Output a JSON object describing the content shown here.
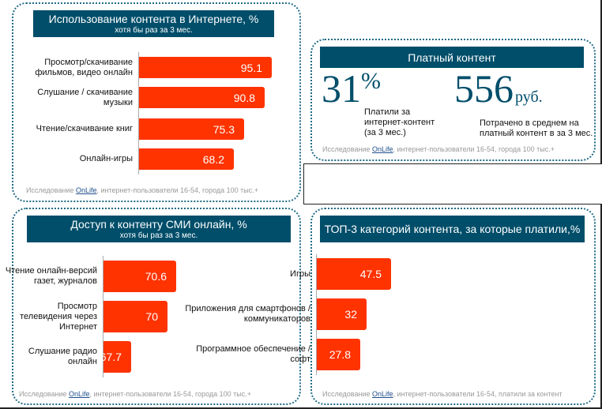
{
  "colors": {
    "header": "#004e6a",
    "bar": "#ff3300",
    "link": "#1f4e8a"
  },
  "panel1": {
    "title": "Использование контента в Интернете, %",
    "subtitle": "хотя бы раз за 3 мес.",
    "bars": [
      {
        "label": "Просмотр/скачивание фильмов, видео онлайн",
        "value": "95.1"
      },
      {
        "label": "Слушание / скачивание музыки",
        "value": "90.8"
      },
      {
        "label": "Чтение/скачивание книг",
        "value": "75.3"
      },
      {
        "label": "Онлайн-игры",
        "value": "68.2"
      }
    ],
    "footer_pre": "Исследование ",
    "footer_link": "OnLife",
    "footer_post": ", интернет-пользователи 16-54, города 100 тыс.+"
  },
  "panel2": {
    "title": "Платный контент",
    "stat1_value": "31",
    "stat1_unit": "%",
    "stat1_text": "Платили за интернет-контент (за 3 мес.)",
    "stat2_value": "556",
    "stat2_unit": "руб.",
    "stat2_text": "Потрачено в среднем на платный контент в за 3 мес.",
    "footer_pre": "Исследование ",
    "footer_link": "OnLife",
    "footer_post": ", интернет-пользователи 16-54, города 100 тыс.+"
  },
  "panel3": {
    "title": "Доступ к контенту СМИ онлайн, %",
    "subtitle": "хотя бы раз за 3 мес.",
    "bars": [
      {
        "label": "Чтение онлайн-версий газет, журналов",
        "value": "70.6"
      },
      {
        "label": "Просмотр телевидения через Интернет",
        "value": "70"
      },
      {
        "label": "Слушание радио онлайн",
        "value": "67.7"
      }
    ],
    "footer_pre": "Исследование ",
    "footer_link": "OnLife",
    "footer_post": ", интернет-пользователи 16-54, города 100 тыс.+"
  },
  "panel4": {
    "title": "ТОП-3 категорий контента, за которые платили,%",
    "bars": [
      {
        "label": "Игры",
        "value": "47.5"
      },
      {
        "label": "Приложения для смартфонов / коммуникаторов",
        "value": "32"
      },
      {
        "label": "Программное обеспечение / софт",
        "value": "27.8"
      }
    ],
    "footer_pre": "Исследование ",
    "footer_link": "OnLife",
    "footer_post": ", интернет-пользователи 16-54, платили за контент"
  }
}
